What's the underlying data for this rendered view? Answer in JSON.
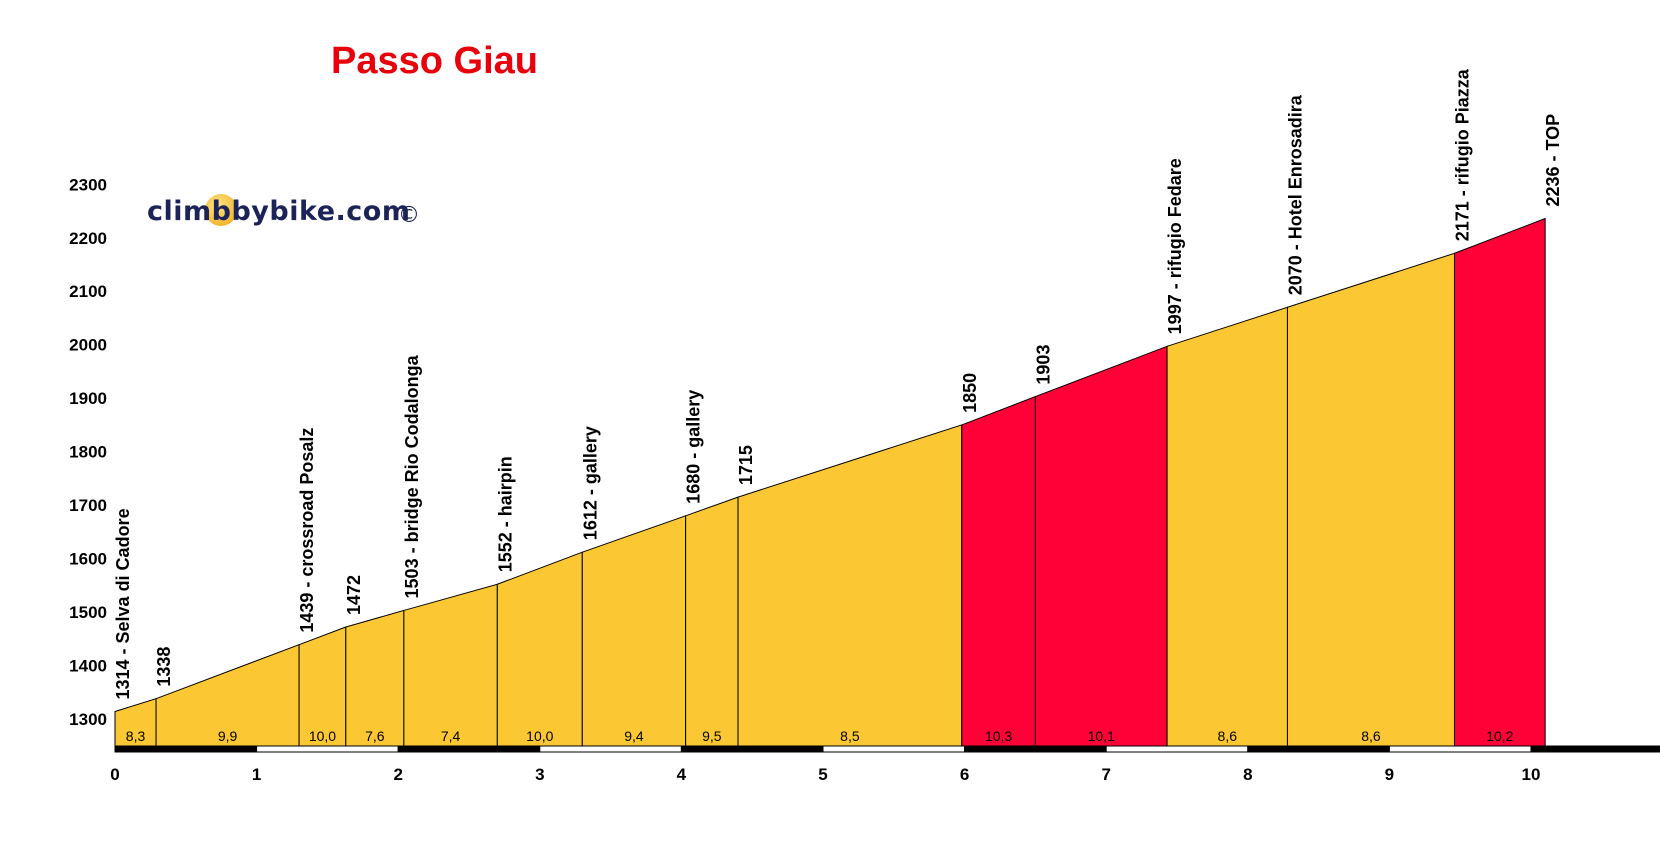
{
  "title": "Passo Giau",
  "logo": {
    "text": "climbbybike.com",
    "copyright": "©"
  },
  "colors": {
    "moderate": "#fbc833",
    "steep": "#ff0037",
    "title": "#e8000b",
    "axis": "#000000"
  },
  "chart_data": {
    "type": "area",
    "title": "Passo Giau",
    "xlabel": "",
    "ylabel": "",
    "xlim": [
      0,
      10.2
    ],
    "ylim": [
      1250,
      2300
    ],
    "x_ticks": [
      "0",
      "1",
      "2",
      "3",
      "4",
      "5",
      "6",
      "7",
      "8",
      "9",
      "10"
    ],
    "y_ticks": [
      "1300",
      "1400",
      "1500",
      "1600",
      "1700",
      "1800",
      "1900",
      "2000",
      "2100",
      "2200",
      "2300"
    ],
    "points": [
      {
        "km": 0.0,
        "alt": 1314,
        "label": "1314 - Selva di Cadore"
      },
      {
        "km": 0.29,
        "alt": 1338,
        "label": "1338"
      },
      {
        "km": 1.3,
        "alt": 1439,
        "label": "1439 - crossroad Posalz"
      },
      {
        "km": 1.63,
        "alt": 1472,
        "label": "1472"
      },
      {
        "km": 2.04,
        "alt": 1503,
        "label": "1503 - bridge Rio Codalonga"
      },
      {
        "km": 2.7,
        "alt": 1552,
        "label": "1552 - hairpin"
      },
      {
        "km": 3.3,
        "alt": 1612,
        "label": "1612 - gallery"
      },
      {
        "km": 4.03,
        "alt": 1680,
        "label": "1680 - gallery"
      },
      {
        "km": 4.4,
        "alt": 1715,
        "label": "1715"
      },
      {
        "km": 5.98,
        "alt": 1850,
        "label": "1850"
      },
      {
        "km": 6.5,
        "alt": 1903,
        "label": "1903"
      },
      {
        "km": 7.43,
        "alt": 1997,
        "label": "1997 - rifugio Fedare"
      },
      {
        "km": 8.28,
        "alt": 2070,
        "label": "2070 - Hotel Enrosadira"
      },
      {
        "km": 9.46,
        "alt": 2171,
        "label": "2171 - rifugio Piazza"
      },
      {
        "km": 10.1,
        "alt": 2236,
        "label": "2236 - TOP"
      }
    ],
    "segments": [
      {
        "gradient": "8,3",
        "level": "moderate"
      },
      {
        "gradient": "9,9",
        "level": "moderate"
      },
      {
        "gradient": "10,0",
        "level": "moderate"
      },
      {
        "gradient": "7,6",
        "level": "moderate"
      },
      {
        "gradient": "7,4",
        "level": "moderate"
      },
      {
        "gradient": "10,0",
        "level": "moderate"
      },
      {
        "gradient": "9,4",
        "level": "moderate"
      },
      {
        "gradient": "9,5",
        "level": "moderate"
      },
      {
        "gradient": "8,5",
        "level": "moderate"
      },
      {
        "gradient": "10,3",
        "level": "steep"
      },
      {
        "gradient": "10,1",
        "level": "steep"
      },
      {
        "gradient": "8,6",
        "level": "moderate"
      },
      {
        "gradient": "8,6",
        "level": "moderate"
      },
      {
        "gradient": "10,2",
        "level": "steep"
      }
    ]
  }
}
